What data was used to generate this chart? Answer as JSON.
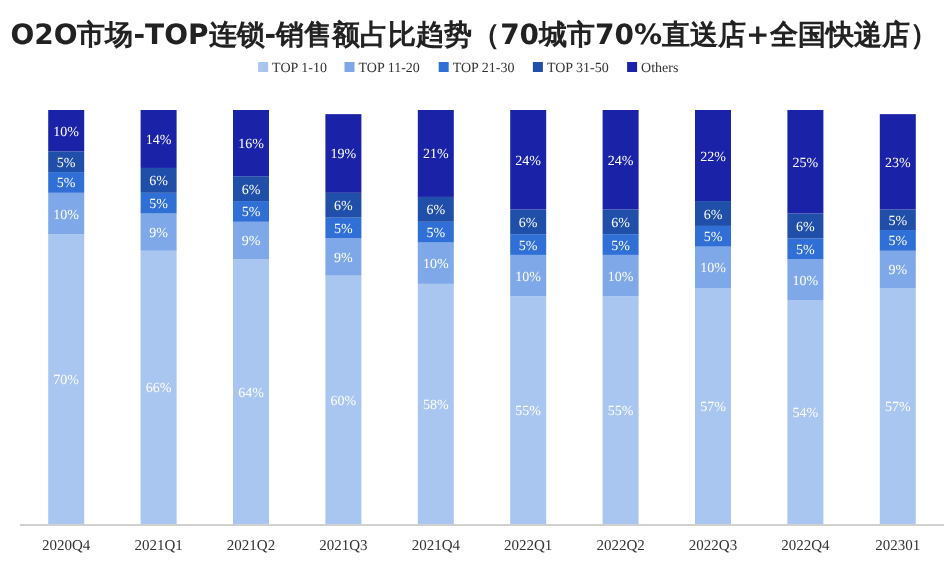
{
  "chart_data": {
    "type": "bar",
    "stacked": true,
    "title": "O2O市场-TOP连锁-销售额占比趋势（70城市70%直送店+全国快递店）",
    "legend": "top",
    "grid": false,
    "categories": [
      "2020Q4",
      "2021Q1",
      "2021Q2",
      "2021Q3",
      "2021Q4",
      "2022Q1",
      "2022Q2",
      "2022Q3",
      "2022Q4",
      "202301"
    ],
    "series": [
      {
        "name": "TOP 1-10",
        "color": "#a9c6f0",
        "values": [
          70,
          66,
          64,
          60,
          58,
          55,
          55,
          57,
          54,
          57
        ],
        "value_labels": [
          "70%",
          "66%",
          "64%",
          "60%",
          "58%",
          "55%",
          "55%",
          "57%",
          "54%",
          "57%"
        ]
      },
      {
        "name": "TOP 11-20",
        "color": "#7ea8e8",
        "values": [
          10,
          9,
          9,
          9,
          10,
          10,
          10,
          10,
          10,
          9
        ],
        "value_labels": [
          "10%",
          "9%",
          "9%",
          "9%",
          "10%",
          "10%",
          "10%",
          "10%",
          "10%",
          "9%"
        ]
      },
      {
        "name": "TOP 21-30",
        "color": "#2f6fd6",
        "values": [
          5,
          5,
          5,
          5,
          5,
          5,
          5,
          5,
          5,
          5
        ],
        "value_labels": [
          "5%",
          "5%",
          "5%",
          "5%",
          "5%",
          "5%",
          "5%",
          "5%",
          "5%",
          "5%"
        ]
      },
      {
        "name": "TOP 31-50",
        "color": "#1f4fa8",
        "values": [
          5,
          6,
          6,
          6,
          6,
          6,
          6,
          6,
          6,
          5
        ],
        "value_labels": [
          "5%",
          "6%",
          "6%",
          "6%",
          "6%",
          "6%",
          "6%",
          "6%",
          "6%",
          "5%"
        ]
      },
      {
        "name": "Others",
        "color": "#1a23a8",
        "values": [
          10,
          14,
          16,
          19,
          21,
          24,
          24,
          22,
          25,
          23
        ],
        "value_labels": [
          "10%",
          "14%",
          "16%",
          "19%",
          "21%",
          "24%",
          "24%",
          "22%",
          "25%",
          "23%"
        ]
      }
    ]
  }
}
